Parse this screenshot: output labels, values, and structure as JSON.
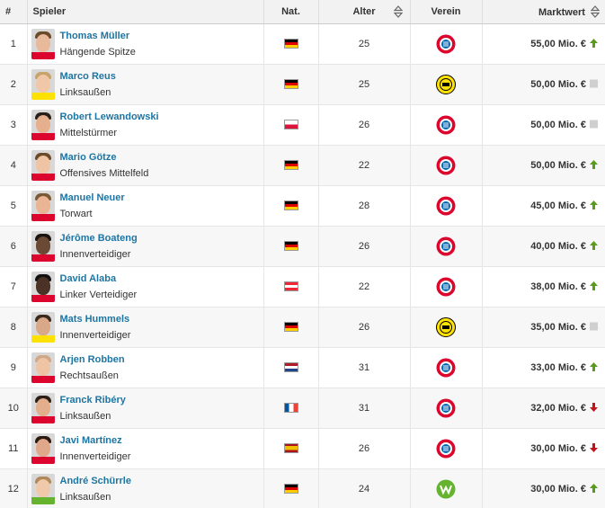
{
  "table": {
    "headers": {
      "rank": "#",
      "player": "Spieler",
      "nat": "Nat.",
      "age": "Alter",
      "club": "Verein",
      "value": "Marktwert"
    },
    "rows": [
      {
        "rank": "1",
        "name": "Thomas Müller",
        "position": "Hängende Spitze",
        "nat": "germany",
        "age": "25",
        "club": "bayern",
        "value": "55,00 Mio. €",
        "trend": "up"
      },
      {
        "rank": "2",
        "name": "Marco Reus",
        "position": "Linksaußen",
        "nat": "germany",
        "age": "25",
        "club": "bvb",
        "value": "50,00 Mio. €",
        "trend": "same"
      },
      {
        "rank": "3",
        "name": "Robert Lewandowski",
        "position": "Mittelstürmer",
        "nat": "poland",
        "age": "26",
        "club": "bayern",
        "value": "50,00 Mio. €",
        "trend": "same"
      },
      {
        "rank": "4",
        "name": "Mario Götze",
        "position": "Offensives Mittelfeld",
        "nat": "germany",
        "age": "22",
        "club": "bayern",
        "value": "50,00 Mio. €",
        "trend": "up"
      },
      {
        "rank": "5",
        "name": "Manuel Neuer",
        "position": "Torwart",
        "nat": "germany",
        "age": "28",
        "club": "bayern",
        "value": "45,00 Mio. €",
        "trend": "up"
      },
      {
        "rank": "6",
        "name": "Jérôme Boateng",
        "position": "Innenverteidiger",
        "nat": "germany",
        "age": "26",
        "club": "bayern",
        "value": "40,00 Mio. €",
        "trend": "up"
      },
      {
        "rank": "7",
        "name": "David Alaba",
        "position": "Linker Verteidiger",
        "nat": "austria",
        "age": "22",
        "club": "bayern",
        "value": "38,00 Mio. €",
        "trend": "up"
      },
      {
        "rank": "8",
        "name": "Mats Hummels",
        "position": "Innenverteidiger",
        "nat": "germany",
        "age": "26",
        "club": "bvb",
        "value": "35,00 Mio. €",
        "trend": "same"
      },
      {
        "rank": "9",
        "name": "Arjen Robben",
        "position": "Rechtsaußen",
        "nat": "netherlands",
        "age": "31",
        "club": "bayern",
        "value": "33,00 Mio. €",
        "trend": "up"
      },
      {
        "rank": "10",
        "name": "Franck Ribéry",
        "position": "Linksaußen",
        "nat": "france",
        "age": "31",
        "club": "bayern",
        "value": "32,00 Mio. €",
        "trend": "down"
      },
      {
        "rank": "11",
        "name": "Javi Martínez",
        "position": "Innenverteidiger",
        "nat": "spain",
        "age": "26",
        "club": "bayern",
        "value": "30,00 Mio. €",
        "trend": "down"
      },
      {
        "rank": "12",
        "name": "André Schürrle",
        "position": "Linksaußen",
        "nat": "germany",
        "age": "24",
        "club": "wolfsburg",
        "value": "30,00 Mio. €",
        "trend": "up"
      }
    ]
  },
  "colors": {
    "link": "#1d75a3",
    "trend_up": "#5a9a1f",
    "trend_down": "#c0141b",
    "trend_same": "#cfcfcf",
    "bayern_red": "#dc052d",
    "bvb_yellow": "#fde100",
    "wolfsburg_green": "#65b32e"
  }
}
